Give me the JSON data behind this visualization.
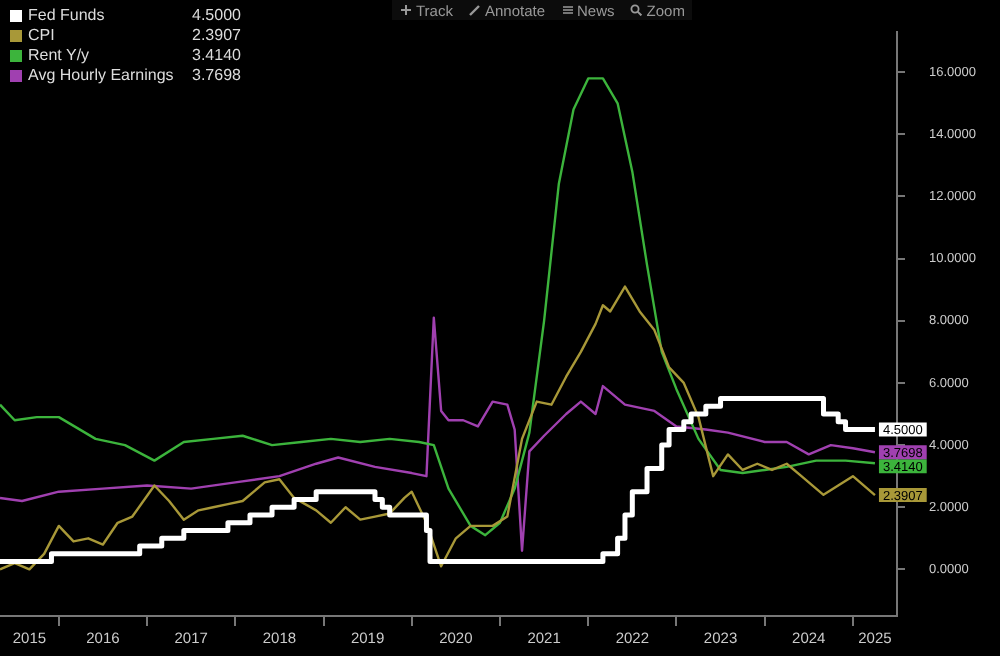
{
  "chart_data": {
    "type": "line",
    "annotations": [
      "Track",
      "Annotate",
      "News",
      "Zoom"
    ],
    "xlim": [
      "2015-05",
      "2025-07"
    ],
    "xticks": [
      {
        "value": "2015-09",
        "label": "2015"
      },
      {
        "value": "2016-01",
        "label": null
      },
      {
        "value": "2016-07",
        "label": "2016"
      },
      {
        "value": "2017-01",
        "label": null
      },
      {
        "value": "2017-07",
        "label": "2017"
      },
      {
        "value": "2018-01",
        "label": null
      },
      {
        "value": "2018-07",
        "label": "2018"
      },
      {
        "value": "2019-01",
        "label": null
      },
      {
        "value": "2019-07",
        "label": "2019"
      },
      {
        "value": "2020-01",
        "label": null
      },
      {
        "value": "2020-07",
        "label": "2020"
      },
      {
        "value": "2021-01",
        "label": null
      },
      {
        "value": "2021-07",
        "label": "2021"
      },
      {
        "value": "2022-01",
        "label": null
      },
      {
        "value": "2022-07",
        "label": "2022"
      },
      {
        "value": "2023-01",
        "label": null
      },
      {
        "value": "2023-07",
        "label": "2023"
      },
      {
        "value": "2024-01",
        "label": null
      },
      {
        "value": "2024-07",
        "label": "2024"
      },
      {
        "value": "2025-01",
        "label": null
      },
      {
        "value": "2025-04",
        "label": "2025"
      }
    ],
    "ylim": [
      -1.5,
      17.3
    ],
    "yticks": [
      {
        "value": 0,
        "label": "0.0000"
      },
      {
        "value": 2,
        "label": "2.0000"
      },
      {
        "value": 4,
        "label": "4.0000"
      },
      {
        "value": 6,
        "label": "6.0000"
      },
      {
        "value": 8,
        "label": "8.0000"
      },
      {
        "value": 10,
        "label": "10.0000"
      },
      {
        "value": 12,
        "label": "12.0000"
      },
      {
        "value": 14,
        "label": "14.0000"
      },
      {
        "value": 16,
        "label": "16.0000"
      }
    ],
    "grid": false,
    "legend": "top left",
    "marker": "none",
    "line_style": "solid",
    "series": [
      {
        "name": "Fed Funds",
        "type": "step",
        "color": "#ffffff",
        "x": [
          "2015-05",
          "2015-12",
          "2016-12",
          "2017-03",
          "2017-06",
          "2017-12",
          "2018-03",
          "2018-06",
          "2018-09",
          "2018-12",
          "2019-08",
          "2019-09",
          "2019-10",
          "2020-03",
          "2020-03-16",
          "2022-03",
          "2022-05",
          "2022-06",
          "2022-07",
          "2022-09",
          "2022-11",
          "2022-12",
          "2023-02",
          "2023-03",
          "2023-05",
          "2023-07",
          "2024-09",
          "2024-11",
          "2024-12",
          "2025-04"
        ],
        "values": [
          0.25,
          0.5,
          0.75,
          1.0,
          1.25,
          1.5,
          1.75,
          2.0,
          2.25,
          2.5,
          2.25,
          2.0,
          1.75,
          1.25,
          0.25,
          0.5,
          1.0,
          1.75,
          2.5,
          3.25,
          4.0,
          4.5,
          4.75,
          5.0,
          5.25,
          5.5,
          5.0,
          4.75,
          4.5,
          4.5
        ],
        "value_labels": [
          null,
          null,
          null,
          null,
          null,
          null,
          null,
          null,
          null,
          null,
          null,
          null,
          null,
          null,
          null,
          null,
          null,
          null,
          null,
          null,
          null,
          null,
          null,
          null,
          null,
          null,
          null,
          null,
          null,
          "4.5000"
        ]
      },
      {
        "name": "CPI",
        "color": "#a89838",
        "x": [
          "2015-05",
          "2015-07",
          "2015-09",
          "2015-11",
          "2016-01",
          "2016-03",
          "2016-05",
          "2016-07",
          "2016-09",
          "2016-11",
          "2017-02",
          "2017-04",
          "2017-06",
          "2017-08",
          "2017-10",
          "2017-12",
          "2018-02",
          "2018-05",
          "2018-07",
          "2018-09",
          "2018-12",
          "2019-02",
          "2019-04",
          "2019-06",
          "2019-08",
          "2019-10",
          "2019-12",
          "2020-01",
          "2020-03",
          "2020-05",
          "2020-07",
          "2020-09",
          "2020-12",
          "2021-02",
          "2021-04",
          "2021-06",
          "2021-08",
          "2021-10",
          "2021-12",
          "2022-02",
          "2022-03",
          "2022-04",
          "2022-06",
          "2022-08",
          "2022-10",
          "2022-12",
          "2023-02",
          "2023-04",
          "2023-06",
          "2023-08",
          "2023-10",
          "2023-12",
          "2024-02",
          "2024-04",
          "2024-06",
          "2024-09",
          "2024-11",
          "2025-01",
          "2025-04"
        ],
        "values": [
          0.0,
          0.2,
          0.0,
          0.5,
          1.4,
          0.9,
          1.0,
          0.8,
          1.5,
          1.7,
          2.7,
          2.2,
          1.6,
          1.9,
          2.0,
          2.1,
          2.2,
          2.8,
          2.9,
          2.3,
          1.9,
          1.5,
          2.0,
          1.6,
          1.7,
          1.8,
          2.3,
          2.5,
          1.5,
          0.1,
          1.0,
          1.4,
          1.4,
          1.7,
          4.2,
          5.4,
          5.3,
          6.2,
          7.0,
          7.9,
          8.5,
          8.3,
          9.1,
          8.3,
          7.7,
          6.5,
          6.0,
          4.9,
          3.0,
          3.7,
          3.2,
          3.4,
          3.2,
          3.4,
          3.0,
          2.4,
          2.7,
          3.0,
          2.3907
        ],
        "value_labels": [
          null,
          null,
          null,
          null,
          null,
          null,
          null,
          null,
          null,
          null,
          null,
          null,
          null,
          null,
          null,
          null,
          null,
          null,
          null,
          null,
          null,
          null,
          null,
          null,
          null,
          null,
          null,
          null,
          null,
          null,
          null,
          null,
          null,
          null,
          null,
          null,
          null,
          null,
          null,
          null,
          null,
          null,
          null,
          null,
          null,
          null,
          null,
          null,
          null,
          null,
          null,
          null,
          null,
          null,
          null,
          null,
          null,
          null,
          "2.3907"
        ]
      },
      {
        "name": "Rent Y/y",
        "color": "#3cb43c",
        "x": [
          "2015-05",
          "2015-07",
          "2015-10",
          "2016-01",
          "2016-06",
          "2016-10",
          "2017-02",
          "2017-06",
          "2017-10",
          "2018-02",
          "2018-06",
          "2018-10",
          "2019-02",
          "2019-06",
          "2019-10",
          "2020-02",
          "2020-04",
          "2020-06",
          "2020-09",
          "2020-11",
          "2021-01",
          "2021-03",
          "2021-05",
          "2021-07",
          "2021-09",
          "2021-11",
          "2022-01",
          "2022-03",
          "2022-05",
          "2022-07",
          "2022-09",
          "2022-11",
          "2023-01",
          "2023-04",
          "2023-07",
          "2023-10",
          "2024-01",
          "2024-04",
          "2024-08",
          "2024-12",
          "2025-04"
        ],
        "values": [
          5.3,
          4.8,
          4.9,
          4.9,
          4.2,
          4.0,
          3.5,
          4.1,
          4.2,
          4.3,
          4.0,
          4.1,
          4.2,
          4.1,
          4.2,
          4.1,
          4.0,
          2.6,
          1.4,
          1.1,
          1.5,
          2.6,
          4.4,
          8.0,
          12.4,
          14.8,
          15.8,
          15.8,
          15.0,
          12.8,
          9.8,
          7.0,
          5.8,
          4.2,
          3.2,
          3.1,
          3.2,
          3.3,
          3.5,
          3.5,
          3.414
        ],
        "value_labels": [
          null,
          null,
          null,
          null,
          null,
          null,
          null,
          null,
          null,
          null,
          null,
          null,
          null,
          null,
          null,
          null,
          null,
          null,
          null,
          null,
          null,
          null,
          null,
          null,
          null,
          null,
          null,
          null,
          null,
          null,
          null,
          null,
          null,
          null,
          null,
          null,
          null,
          null,
          null,
          null,
          "3.4140"
        ]
      },
      {
        "name": "Avg Hourly Earnings",
        "color": "#a040b0",
        "x": [
          "2015-05",
          "2015-08",
          "2016-01",
          "2016-07",
          "2017-01",
          "2017-07",
          "2018-01",
          "2018-07",
          "2018-12",
          "2019-03",
          "2019-08",
          "2020-01",
          "2020-03",
          "2020-04",
          "2020-05",
          "2020-06",
          "2020-08",
          "2020-10",
          "2020-12",
          "2021-02",
          "2021-03",
          "2021-04",
          "2021-05",
          "2021-07",
          "2021-10",
          "2021-12",
          "2022-02",
          "2022-03",
          "2022-06",
          "2022-10",
          "2023-01",
          "2023-05",
          "2023-08",
          "2024-01",
          "2024-04",
          "2024-07",
          "2024-10",
          "2025-01",
          "2025-04"
        ],
        "values": [
          2.3,
          2.2,
          2.5,
          2.6,
          2.7,
          2.6,
          2.8,
          3.0,
          3.4,
          3.6,
          3.3,
          3.1,
          3.0,
          8.1,
          5.1,
          4.8,
          4.8,
          4.6,
          5.4,
          5.3,
          4.5,
          0.6,
          3.8,
          4.3,
          5.0,
          5.4,
          5.0,
          5.9,
          5.3,
          5.1,
          4.6,
          4.5,
          4.4,
          4.1,
          4.1,
          3.7,
          4.0,
          3.9,
          3.7698
        ],
        "value_labels": [
          null,
          null,
          null,
          null,
          null,
          null,
          null,
          null,
          null,
          null,
          null,
          null,
          null,
          null,
          null,
          null,
          null,
          null,
          null,
          null,
          null,
          null,
          null,
          null,
          null,
          null,
          null,
          null,
          null,
          null,
          null,
          null,
          null,
          null,
          null,
          null,
          null,
          null,
          "3.7698"
        ]
      }
    ]
  }
}
